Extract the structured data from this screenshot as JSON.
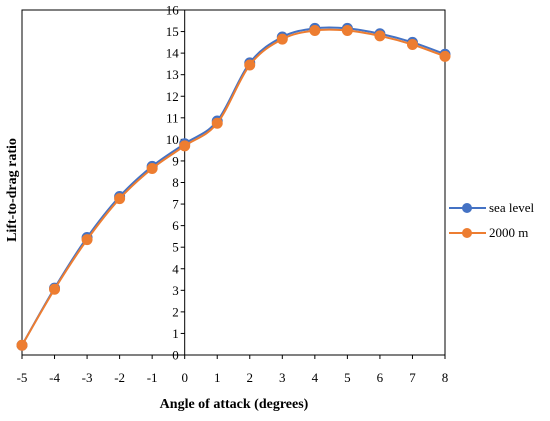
{
  "chart_data": {
    "type": "line",
    "title": "",
    "xlabel": "Angle of attack (degrees)",
    "ylabel": "Lift-to-drag ratio",
    "xlim": [
      -5,
      8
    ],
    "ylim": [
      0,
      16
    ],
    "x_ticks": [
      "-5",
      "-4",
      "-3",
      "-2",
      "-1",
      "0",
      "1",
      "2",
      "3",
      "4",
      "5",
      "6",
      "7",
      "8"
    ],
    "y_ticks": [
      "0",
      "1",
      "2",
      "3",
      "4",
      "5",
      "6",
      "7",
      "8",
      "9",
      "10",
      "11",
      "12",
      "13",
      "14",
      "15",
      "16"
    ],
    "grid": false,
    "legend_position": "right",
    "x": [
      -5,
      -4,
      -3,
      -2,
      -1,
      0,
      1,
      2,
      3,
      4,
      5,
      6,
      7,
      8
    ],
    "series": [
      {
        "name": "sea level",
        "color": "#4472C4",
        "values": [
          0.45,
          3.1,
          5.45,
          7.35,
          8.75,
          9.8,
          10.85,
          13.55,
          14.75,
          15.15,
          15.15,
          14.9,
          14.5,
          13.95
        ]
      },
      {
        "name": "2000 m",
        "color": "#ED7D31",
        "values": [
          0.45,
          3.05,
          5.35,
          7.25,
          8.65,
          9.7,
          10.75,
          13.45,
          14.65,
          15.05,
          15.05,
          14.8,
          14.4,
          13.85
        ]
      }
    ]
  }
}
